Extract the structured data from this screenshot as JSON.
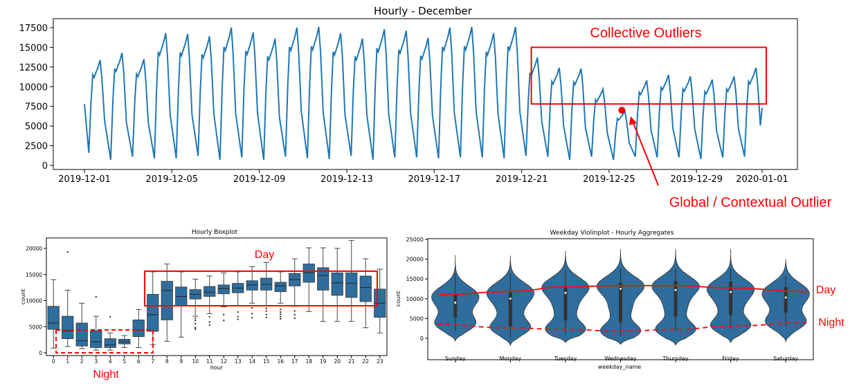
{
  "chart_data": [
    {
      "type": "line",
      "title": "Hourly - December",
      "xlabel": "",
      "ylabel": "",
      "x_range": [
        "2019-12-01",
        "2020-01-01"
      ],
      "ylim": [
        0,
        17500
      ],
      "yticks": [
        0,
        2500,
        5000,
        7500,
        10000,
        12500,
        15000,
        17500
      ],
      "xtick_labels": [
        "2019-12-01",
        "2019-12-05",
        "2019-12-09",
        "2019-12-13",
        "2019-12-17",
        "2019-12-21",
        "2019-12-25",
        "2019-12-29",
        "2020-01-01"
      ],
      "color": "#1f77b4",
      "series": [
        {
          "daily_peaks": [
            13400,
            14300,
            13500,
            16800,
            16700,
            16400,
            17500,
            16900,
            16100,
            17500,
            17600,
            16800,
            16100,
            17300,
            17100,
            16200,
            17500,
            17600,
            16800,
            17600,
            13700,
            12400,
            12300,
            9700,
            6900,
            10800,
            11500,
            11300,
            10900,
            11300,
            12400
          ],
          "daily_troughs": [
            1600,
            700,
            1100,
            900,
            900,
            1200,
            700,
            1000,
            700,
            1100,
            900,
            800,
            1200,
            700,
            1000,
            1000,
            900,
            1000,
            1000,
            900,
            1200,
            1100,
            700,
            1100,
            700,
            1100,
            1000,
            1000,
            800,
            1000,
            1100
          ],
          "start_value": 7800,
          "end_value": 7300
        }
      ],
      "annotations": {
        "collective_label": "Collective Outliers",
        "global_label": "Global / Contextual Outlier",
        "collective_box": {
          "x_start": "2019-12-21",
          "x_end": "2020-01-01",
          "y_low": 7800,
          "y_high": 15000
        },
        "global_point": {
          "x": "2019-12-25 14:00",
          "y": 7000
        }
      }
    },
    {
      "type": "box",
      "title": "Hourly Boxplot",
      "xlabel": "hour",
      "ylabel": "count",
      "ylim": [
        0,
        22000
      ],
      "yticks": [
        0,
        5000,
        10000,
        15000,
        20000
      ],
      "categories": [
        "0",
        "1",
        "2",
        "3",
        "4",
        "5",
        "6",
        "7",
        "8",
        "9",
        "10",
        "11",
        "12",
        "13",
        "14",
        "15",
        "16",
        "17",
        "18",
        "19",
        "20",
        "21",
        "22",
        "23"
      ],
      "color": "#2f6d9c",
      "boxes": [
        {
          "wl": 900,
          "q1": 4500,
          "med": 5700,
          "q3": 8900,
          "wh": 14000,
          "outliers": []
        },
        {
          "wl": 1200,
          "q1": 2700,
          "med": 4200,
          "q3": 7000,
          "wh": 12000,
          "outliers": [
            19300
          ]
        },
        {
          "wl": 800,
          "q1": 1300,
          "med": 2300,
          "q3": 5700,
          "wh": 9500,
          "outliers": []
        },
        {
          "wl": 500,
          "q1": 1000,
          "med": 2100,
          "q3": 4200,
          "wh": 7000,
          "outliers": [
            10700
          ]
        },
        {
          "wl": 500,
          "q1": 1000,
          "med": 1500,
          "q3": 2700,
          "wh": 3800,
          "outliers": [
            6900
          ]
        },
        {
          "wl": 1000,
          "q1": 1700,
          "med": 2100,
          "q3": 2600,
          "wh": 3300,
          "outliers": []
        },
        {
          "wl": 1000,
          "q1": 3100,
          "med": 4300,
          "q3": 6300,
          "wh": 8300,
          "outliers": []
        },
        {
          "wl": 1600,
          "q1": 4100,
          "med": 7300,
          "q3": 11200,
          "wh": 15500,
          "outliers": []
        },
        {
          "wl": 2200,
          "q1": 6300,
          "med": 11900,
          "q3": 13700,
          "wh": 17000,
          "outliers": []
        },
        {
          "wl": 3000,
          "q1": 9000,
          "med": 10800,
          "q3": 12600,
          "wh": 15500,
          "outliers": []
        },
        {
          "wl": 7000,
          "q1": 10300,
          "med": 11200,
          "q3": 12100,
          "wh": 14100,
          "outliers": [
            6600,
            6200,
            5600,
            4800,
            4500
          ]
        },
        {
          "wl": 7500,
          "q1": 10800,
          "med": 11600,
          "q3": 12700,
          "wh": 14700,
          "outliers": [
            6900,
            5900,
            5300
          ]
        },
        {
          "wl": 8800,
          "q1": 11300,
          "med": 12300,
          "q3": 13000,
          "wh": 15300,
          "outliers": [
            7300,
            6200
          ]
        },
        {
          "wl": 9000,
          "q1": 11500,
          "med": 12400,
          "q3": 13300,
          "wh": 15500,
          "outliers": [
            7800,
            6900,
            6400
          ]
        },
        {
          "wl": 9500,
          "q1": 12000,
          "med": 13000,
          "q3": 13800,
          "wh": 16500,
          "outliers": [
            8600,
            7500,
            6700
          ]
        },
        {
          "wl": 9000,
          "q1": 12000,
          "med": 13100,
          "q3": 14300,
          "wh": 17300,
          "outliers": [
            8500,
            8000,
            7300,
            6800
          ]
        },
        {
          "wl": 9500,
          "q1": 11700,
          "med": 12800,
          "q3": 13500,
          "wh": 15500,
          "outliers": [
            8300,
            7800,
            7400,
            6900,
            6500
          ]
        },
        {
          "wl": 8900,
          "q1": 12800,
          "med": 14000,
          "q3": 15200,
          "wh": 18000,
          "outliers": [
            8000,
            7300,
            6600
          ]
        },
        {
          "wl": 7900,
          "q1": 13500,
          "med": 15300,
          "q3": 17000,
          "wh": 20100,
          "outliers": []
        },
        {
          "wl": 6000,
          "q1": 12000,
          "med": 14800,
          "q3": 16300,
          "wh": 20100,
          "outliers": []
        },
        {
          "wl": 6000,
          "q1": 11000,
          "med": 13400,
          "q3": 15300,
          "wh": 20000,
          "outliers": []
        },
        {
          "wl": 6000,
          "q1": 10600,
          "med": 13300,
          "q3": 15300,
          "wh": 21500,
          "outliers": []
        },
        {
          "wl": 4800,
          "q1": 9800,
          "med": 12500,
          "q3": 14700,
          "wh": 18000,
          "outliers": []
        },
        {
          "wl": 3800,
          "q1": 6800,
          "med": 9500,
          "q3": 12200,
          "wh": 16000,
          "outliers": []
        }
      ],
      "annotations": {
        "day_label": "Day",
        "night_label": "Night"
      }
    },
    {
      "type": "violin",
      "title": "Weekday Violinplot - Hourly Aggregates",
      "xlabel": "weekday_name",
      "ylabel": "count",
      "ylim": [
        -3000,
        25000
      ],
      "yticks": [
        0,
        5000,
        10000,
        15000,
        20000,
        25000
      ],
      "categories": [
        "Sunday",
        "Monday",
        "Tuesday",
        "Wednesday",
        "Thursday",
        "Friday",
        "Saturday"
      ],
      "color": "#2f6d9c",
      "violins": [
        {
          "min": -700,
          "max": 21000,
          "q1": 5200,
          "med": 9000,
          "q3": 11000,
          "lower_mode": 3500,
          "upper_mode": 11000
        },
        {
          "min": -1800,
          "max": 20900,
          "q1": 3000,
          "med": 10000,
          "q3": 12000,
          "lower_mode": 2600,
          "upper_mode": 11800
        },
        {
          "min": -1000,
          "max": 22100,
          "q1": 4500,
          "med": 11500,
          "q3": 13200,
          "lower_mode": 2200,
          "upper_mode": 13000
        },
        {
          "min": -1500,
          "max": 22500,
          "q1": 4000,
          "med": 12500,
          "q3": 14000,
          "lower_mode": 1800,
          "upper_mode": 13300
        },
        {
          "min": -1700,
          "max": 22600,
          "q1": 5500,
          "med": 12200,
          "q3": 14500,
          "lower_mode": 2200,
          "upper_mode": 13300
        },
        {
          "min": -1100,
          "max": 22600,
          "q1": 5800,
          "med": 11700,
          "q3": 14300,
          "lower_mode": 3100,
          "upper_mode": 12700
        },
        {
          "min": -900,
          "max": 20000,
          "q1": 6500,
          "med": 10300,
          "q3": 13000,
          "lower_mode": 3900,
          "upper_mode": 11800
        }
      ],
      "annotations": {
        "day_label": "Day",
        "night_label": "Night"
      }
    }
  ]
}
